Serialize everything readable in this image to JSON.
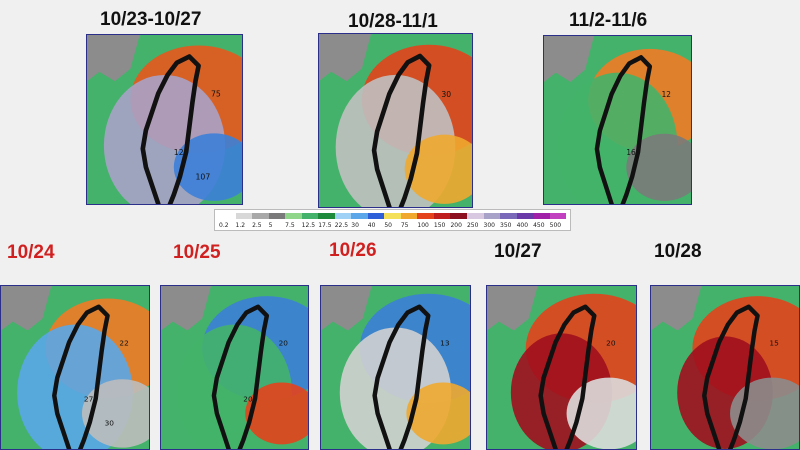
{
  "maps": [
    {
      "name": "map-10-23-to-10-27",
      "label": "10/23-10/27",
      "color": "black",
      "numbers": [
        "75",
        "120",
        "107"
      ],
      "blobs": [
        [
          "#e8581e",
          "0.3"
        ],
        [
          "#a8a2c8",
          "0.35"
        ],
        [
          "#3c7fd8",
          "0.2"
        ]
      ]
    },
    {
      "name": "map-10-28-to-11-1",
      "label": "10/28-11/1",
      "color": "black",
      "numbers": [
        "30"
      ],
      "blobs": [
        [
          "#e4421c",
          "0.3"
        ],
        [
          "#c0c0c0",
          "0.35"
        ],
        [
          "#f0a830",
          "0.2"
        ]
      ]
    },
    {
      "name": "map-11-2-to-11-6",
      "label": "11/2-11/6",
      "color": "black",
      "numbers": [
        "12",
        "16"
      ],
      "blobs": [
        [
          "#f07a26",
          "0.25"
        ],
        [
          "#44b26a",
          "0.4"
        ],
        [
          "#7a7a7a",
          "0.2"
        ]
      ]
    },
    {
      "name": "map-10-24",
      "label": "10/24",
      "color": "red",
      "numbers": [
        "22",
        "27",
        "30"
      ],
      "blobs": [
        [
          "#f07a26",
          "0.25"
        ],
        [
          "#5aa6e8",
          "0.35"
        ],
        [
          "#bdbdbd",
          "0.25"
        ]
      ]
    },
    {
      "name": "map-10-25",
      "label": "10/25",
      "color": "red",
      "numbers": [
        "20",
        "20"
      ],
      "blobs": [
        [
          "#3c7fd8",
          "0.3"
        ],
        [
          "#44b26a",
          "0.35"
        ],
        [
          "#e4421c",
          "0.15"
        ]
      ]
    },
    {
      "name": "map-10-26",
      "label": "10/26",
      "color": "red",
      "numbers": [
        "13"
      ],
      "blobs": [
        [
          "#3c7fd8",
          "0.35"
        ],
        [
          "#d0d0d0",
          "0.3"
        ],
        [
          "#f0a830",
          "0.15"
        ]
      ]
    },
    {
      "name": "map-10-27",
      "label": "10/27",
      "color": "black",
      "numbers": [
        "20"
      ],
      "blobs": [
        [
          "#e4421c",
          "0.35"
        ],
        [
          "#a00f1e",
          "0.2"
        ],
        [
          "#dcdcdc",
          "0.3"
        ]
      ]
    },
    {
      "name": "map-10-28",
      "label": "10/28",
      "color": "black",
      "numbers": [
        "15"
      ],
      "blobs": [
        [
          "#e4421c",
          "0.3"
        ],
        [
          "#a00f1e",
          "0.15"
        ],
        [
          "#8c8c8c",
          "0.3"
        ]
      ]
    }
  ],
  "legend": {
    "ticks": [
      "0.2",
      "1.2",
      "2.5",
      "5",
      "7.5",
      "12.5",
      "17.5",
      "22.5",
      "30",
      "40",
      "50",
      "75",
      "100",
      "150",
      "200",
      "250",
      "300",
      "350",
      "400",
      "450",
      "500"
    ],
    "colors": [
      "#ffffff",
      "#d8d8d8",
      "#a8a8a8",
      "#7a7a7a",
      "#8fd68a",
      "#44b26a",
      "#1e8a3c",
      "#9fd0f5",
      "#5aa6e8",
      "#2f5fd8",
      "#f5e05a",
      "#f0a830",
      "#e4421c",
      "#c01e1e",
      "#8b0f1e",
      "#d8c8e0",
      "#a8a2c8",
      "#7a68b8",
      "#6a3aa8",
      "#a020a8",
      "#c040c0"
    ]
  }
}
